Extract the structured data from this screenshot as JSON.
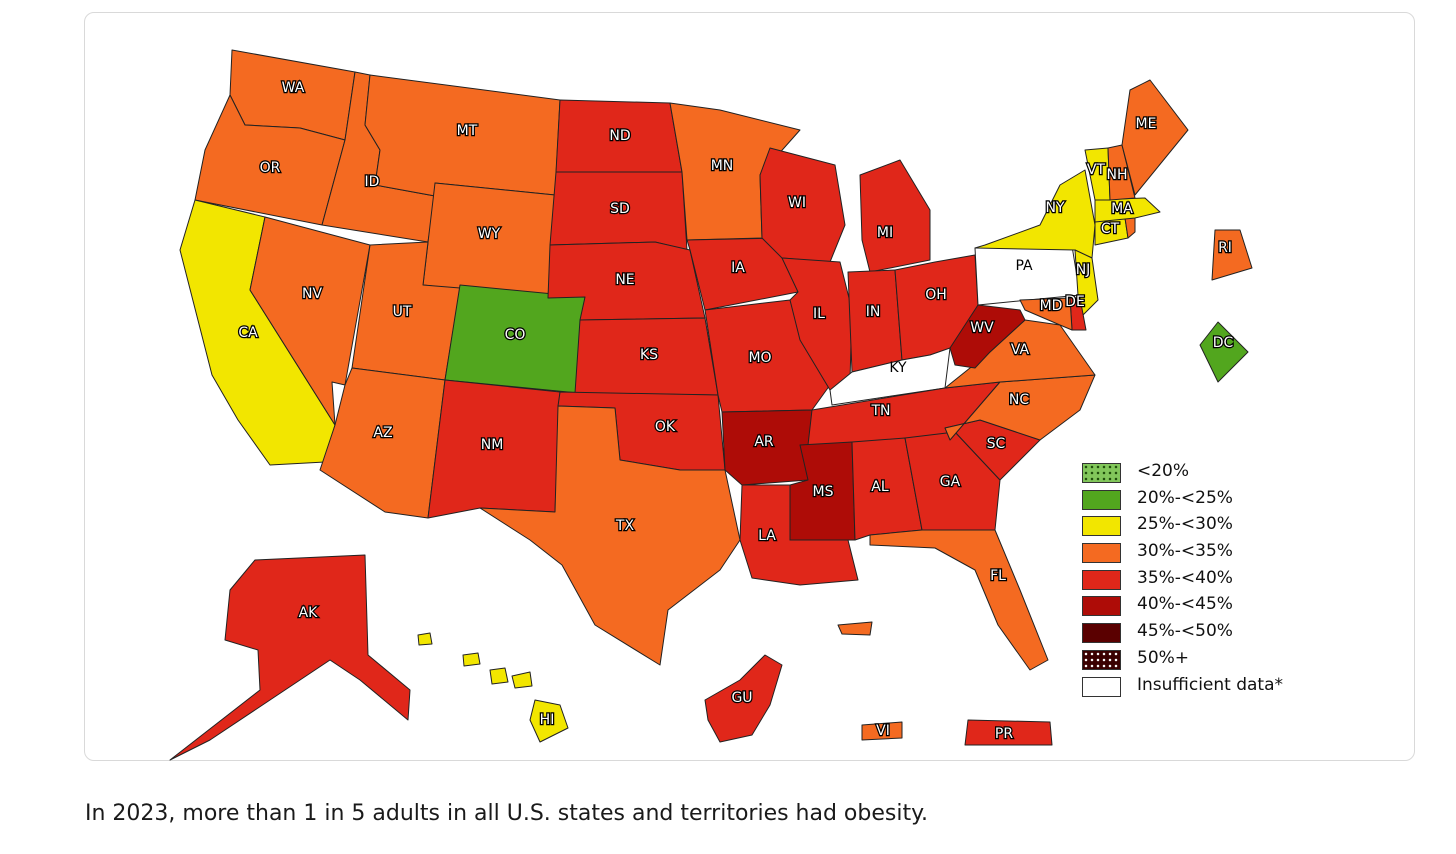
{
  "caption": "In 2023, more than 1 in 5 adults in all U.S. states and territories had obesity.",
  "colors": {
    "lt20": "#82c75b",
    "c20_25": "#52a61e",
    "c25_30": "#f2e600",
    "c30_35": "#f46a21",
    "c35_40": "#e0271a",
    "c40_45": "#ae0c07",
    "c45_50": "#5a0000",
    "c50plus": "#3a0000",
    "insufficient": "#ffffff"
  },
  "legend": [
    {
      "label": "<20%",
      "color": "#82c75b",
      "pattern": "dots-dark"
    },
    {
      "label": "20%-<25%",
      "color": "#52a61e"
    },
    {
      "label": "25%-<30%",
      "color": "#f2e600"
    },
    {
      "label": "30%-<35%",
      "color": "#f46a21"
    },
    {
      "label": "35%-<40%",
      "color": "#e0271a"
    },
    {
      "label": "40%-<45%",
      "color": "#ae0c07"
    },
    {
      "label": "45%-<50%",
      "color": "#5a0000"
    },
    {
      "label": "50%+",
      "color": "#3a0000",
      "pattern": "dots-light"
    },
    {
      "label": "Insufficient data*",
      "color": "#ffffff"
    }
  ],
  "states": [
    {
      "abbr": "WA",
      "category": "30%-<35%"
    },
    {
      "abbr": "OR",
      "category": "30%-<35%"
    },
    {
      "abbr": "CA",
      "category": "25%-<30%"
    },
    {
      "abbr": "ID",
      "category": "30%-<35%"
    },
    {
      "abbr": "NV",
      "category": "30%-<35%"
    },
    {
      "abbr": "MT",
      "category": "30%-<35%"
    },
    {
      "abbr": "WY",
      "category": "30%-<35%"
    },
    {
      "abbr": "UT",
      "category": "30%-<35%"
    },
    {
      "abbr": "CO",
      "category": "20%-<25%"
    },
    {
      "abbr": "AZ",
      "category": "30%-<35%"
    },
    {
      "abbr": "NM",
      "category": "35%-<40%"
    },
    {
      "abbr": "ND",
      "category": "35%-<40%"
    },
    {
      "abbr": "SD",
      "category": "35%-<40%"
    },
    {
      "abbr": "NE",
      "category": "35%-<40%"
    },
    {
      "abbr": "KS",
      "category": "35%-<40%"
    },
    {
      "abbr": "OK",
      "category": "35%-<40%"
    },
    {
      "abbr": "TX",
      "category": "30%-<35%"
    },
    {
      "abbr": "MN",
      "category": "30%-<35%"
    },
    {
      "abbr": "IA",
      "category": "35%-<40%"
    },
    {
      "abbr": "MO",
      "category": "35%-<40%"
    },
    {
      "abbr": "AR",
      "category": "40%-<45%"
    },
    {
      "abbr": "LA",
      "category": "35%-<40%"
    },
    {
      "abbr": "WI",
      "category": "35%-<40%"
    },
    {
      "abbr": "IL",
      "category": "35%-<40%"
    },
    {
      "abbr": "MI",
      "category": "35%-<40%"
    },
    {
      "abbr": "IN",
      "category": "35%-<40%"
    },
    {
      "abbr": "OH",
      "category": "35%-<40%"
    },
    {
      "abbr": "KY",
      "category": "Insufficient data*"
    },
    {
      "abbr": "TN",
      "category": "35%-<40%"
    },
    {
      "abbr": "MS",
      "category": "40%-<45%"
    },
    {
      "abbr": "AL",
      "category": "35%-<40%"
    },
    {
      "abbr": "GA",
      "category": "35%-<40%"
    },
    {
      "abbr": "FL",
      "category": "30%-<35%"
    },
    {
      "abbr": "SC",
      "category": "35%-<40%"
    },
    {
      "abbr": "NC",
      "category": "30%-<35%"
    },
    {
      "abbr": "VA",
      "category": "30%-<35%"
    },
    {
      "abbr": "WV",
      "category": "40%-<45%"
    },
    {
      "abbr": "PA",
      "category": "Insufficient data*"
    },
    {
      "abbr": "NY",
      "category": "25%-<30%"
    },
    {
      "abbr": "NJ",
      "category": "25%-<30%"
    },
    {
      "abbr": "DE",
      "category": "35%-<40%"
    },
    {
      "abbr": "MD",
      "category": "30%-<35%"
    },
    {
      "abbr": "CT",
      "category": "25%-<30%"
    },
    {
      "abbr": "RI",
      "category": "30%-<35%"
    },
    {
      "abbr": "MA",
      "category": "25%-<30%"
    },
    {
      "abbr": "VT",
      "category": "25%-<30%"
    },
    {
      "abbr": "NH",
      "category": "30%-<35%"
    },
    {
      "abbr": "ME",
      "category": "30%-<35%"
    },
    {
      "abbr": "DC",
      "category": "20%-<25%"
    },
    {
      "abbr": "AK",
      "category": "35%-<40%"
    },
    {
      "abbr": "HI",
      "category": "25%-<30%"
    },
    {
      "abbr": "GU",
      "category": "35%-<40%"
    },
    {
      "abbr": "VI",
      "category": "30%-<35%"
    },
    {
      "abbr": "PR",
      "category": "35%-<40%"
    }
  ]
}
